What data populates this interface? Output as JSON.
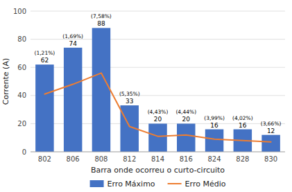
{
  "chart_data": {
    "type": "bar",
    "categories": [
      "802",
      "806",
      "808",
      "812",
      "814",
      "816",
      "824",
      "828",
      "830"
    ],
    "series": [
      {
        "name": "Erro Máximo",
        "type": "bar",
        "color": "#4472C4",
        "data_labels": true,
        "values": [
          62,
          74,
          88,
          33,
          20,
          20,
          16,
          16,
          12
        ]
      },
      {
        "name": "Erro Médio",
        "type": "line",
        "color": "#ED7D31",
        "values": [
          41,
          48,
          56,
          18,
          11,
          12,
          9,
          8,
          7
        ]
      }
    ],
    "annotations": [
      "(1,21%)",
      "(1,69%)",
      "(7,58%)",
      "(5,35%)",
      "(4,43%)",
      "(4,44%)",
      "(3,99%)",
      "(4,02%)",
      "(3,66%)"
    ],
    "xlabel": "Barra onde ocorreu o curto-circuito",
    "ylabel": "Corrente (A)",
    "ylim": [
      0,
      100
    ],
    "yticks": [
      0,
      20,
      40,
      60,
      80,
      100
    ],
    "grid": true,
    "legend": "bottom"
  }
}
